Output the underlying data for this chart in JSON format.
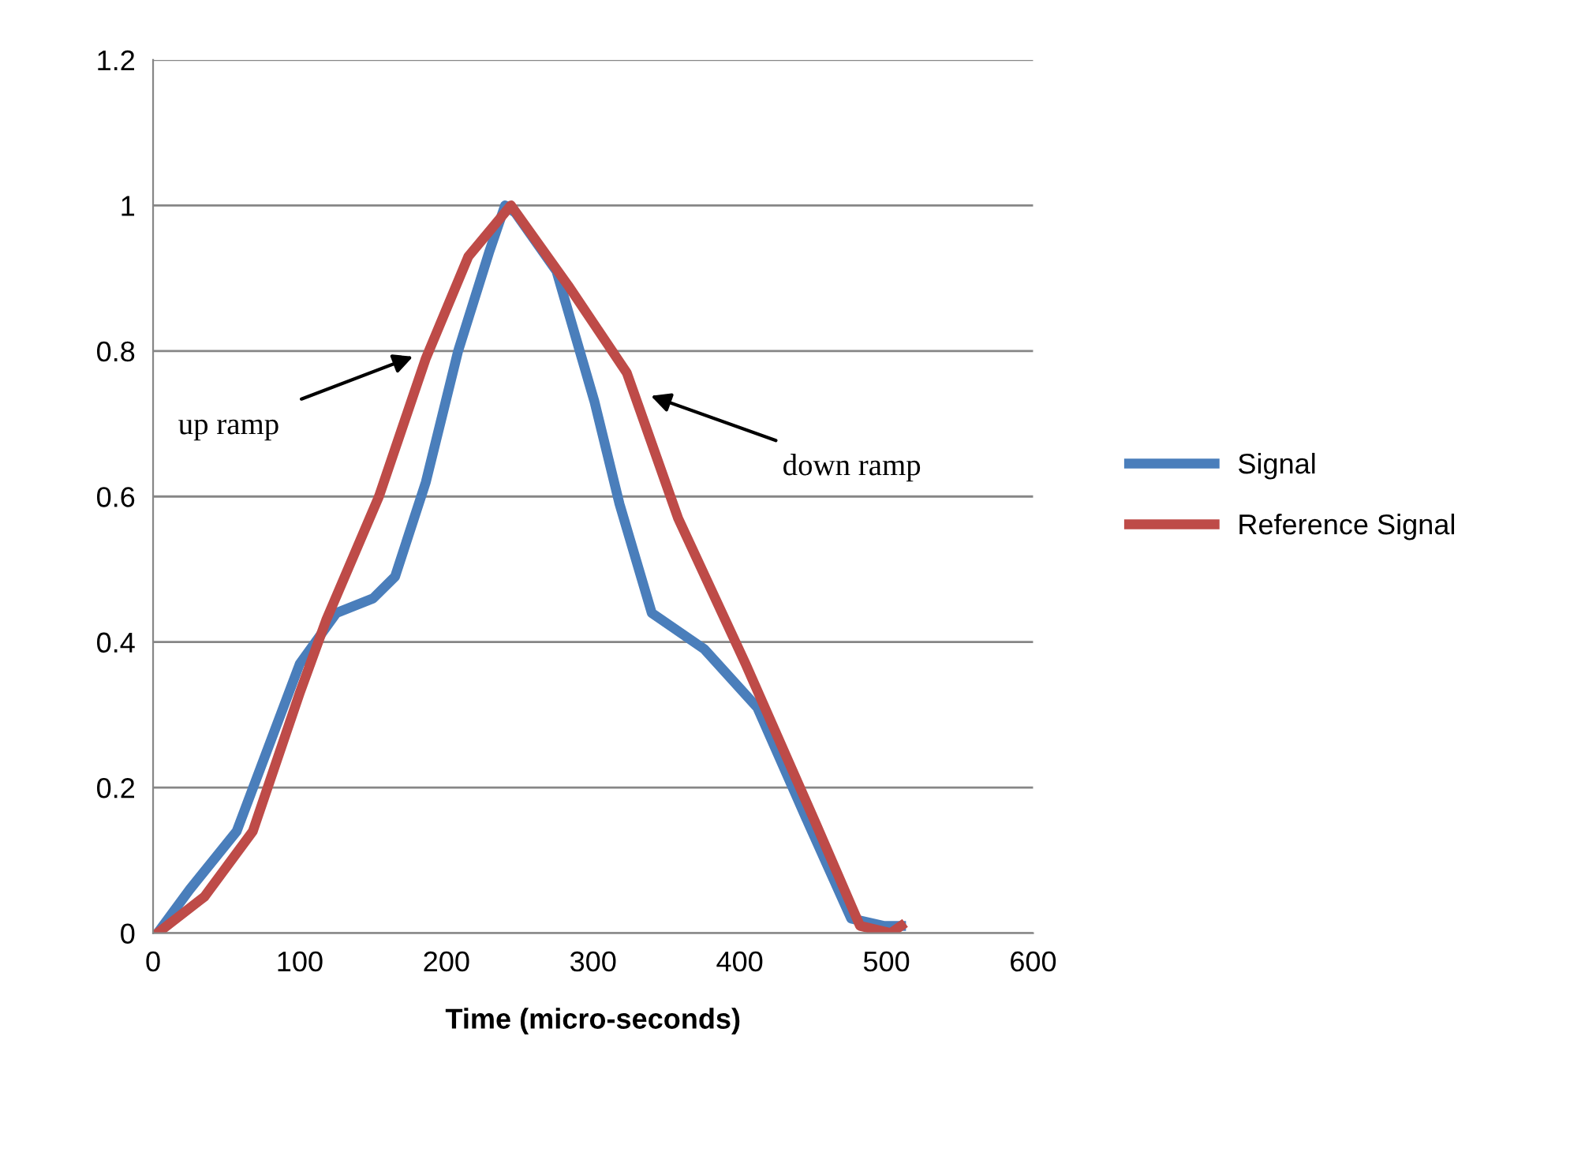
{
  "chart_data": {
    "type": "line",
    "xlabel": "Time (micro-seconds)",
    "xlim": [
      0,
      600
    ],
    "xticks": [
      0,
      100,
      200,
      300,
      400,
      500,
      600
    ],
    "ylim": [
      0,
      1.2
    ],
    "yticks": [
      0,
      0.2,
      0.4,
      0.6,
      0.8,
      1,
      1.2
    ],
    "grid": "y",
    "legend": "right",
    "marker": "none",
    "line_style": "solid",
    "series": [
      {
        "name": "Signal",
        "color": "#4a7ebb",
        "x": [
          3,
          25,
          57,
          100,
          125,
          150,
          165,
          186,
          208,
          229,
          240,
          247,
          275,
          301,
          318,
          340,
          376,
          412,
          447,
          476,
          498,
          510
        ],
        "values": [
          0.0,
          0.06,
          0.14,
          0.37,
          0.44,
          0.46,
          0.49,
          0.62,
          0.8,
          0.935,
          1.0,
          0.99,
          0.91,
          0.73,
          0.59,
          0.44,
          0.39,
          0.31,
          0.15,
          0.02,
          0.01,
          0.01
        ]
      },
      {
        "name": "Reference Signal",
        "color": "#be4b48",
        "x": [
          3,
          35,
          68,
          100,
          118,
          154,
          186,
          215,
          244,
          283,
          323,
          358,
          404,
          452,
          482,
          503,
          510
        ],
        "values": [
          0.0,
          0.05,
          0.14,
          0.33,
          0.43,
          0.6,
          0.79,
          0.93,
          1.0,
          0.89,
          0.77,
          0.57,
          0.37,
          0.15,
          0.01,
          0.0,
          0.01
        ]
      }
    ],
    "annotations": [
      "up ramp",
      "down ramp"
    ]
  }
}
